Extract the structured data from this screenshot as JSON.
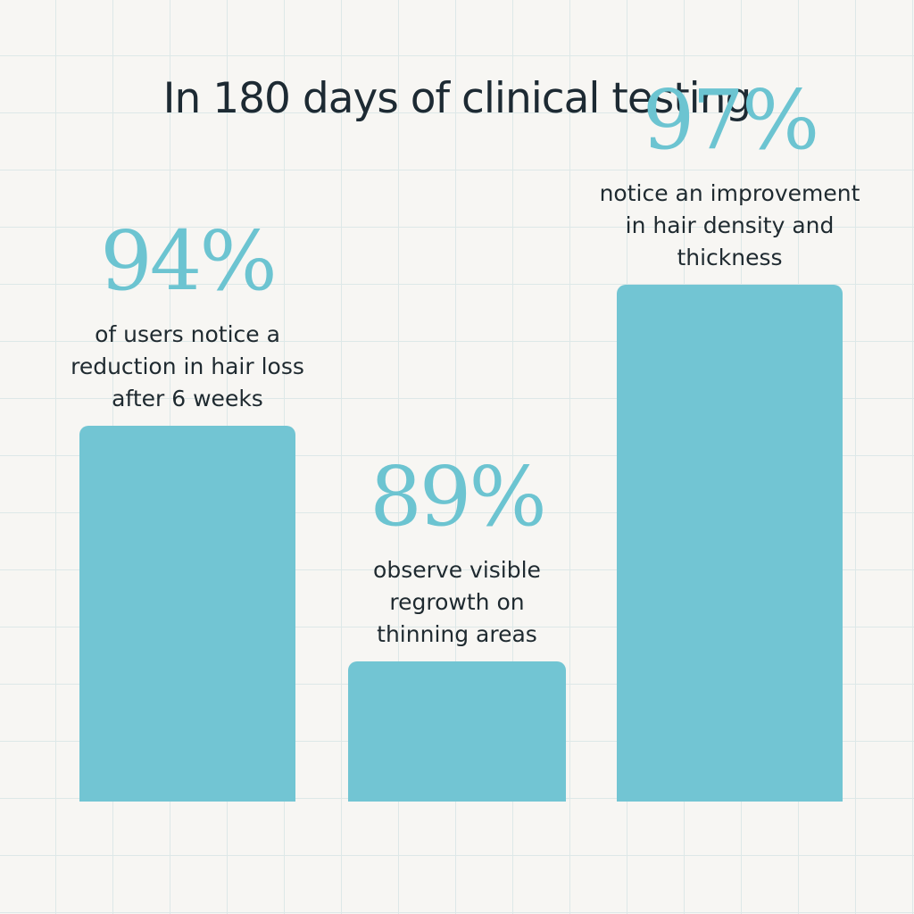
{
  "chart_data": {
    "type": "bar",
    "title": "In 180 days of clinical testing",
    "categories": [
      "of users notice a reduction in hair loss after 6 weeks",
      "observe visible regrowth on thinning areas",
      "notice an improvement in hair density and thickness"
    ],
    "values": [
      94,
      89,
      97
    ],
    "value_labels": [
      "94%",
      "89%",
      "97%"
    ],
    "description_lines": [
      [
        "of users notice a",
        "reduction in hair loss",
        "after 6 weeks"
      ],
      [
        "observe visible",
        "regrowth on",
        "thinning areas"
      ],
      [
        "notice an improvement",
        "in hair density and",
        "thickness"
      ]
    ],
    "grid": true,
    "colors": {
      "bar": "#72c5d3",
      "value_text": "#6cc4d1",
      "text": "#1d2a33",
      "background": "#f7f6f3"
    }
  }
}
